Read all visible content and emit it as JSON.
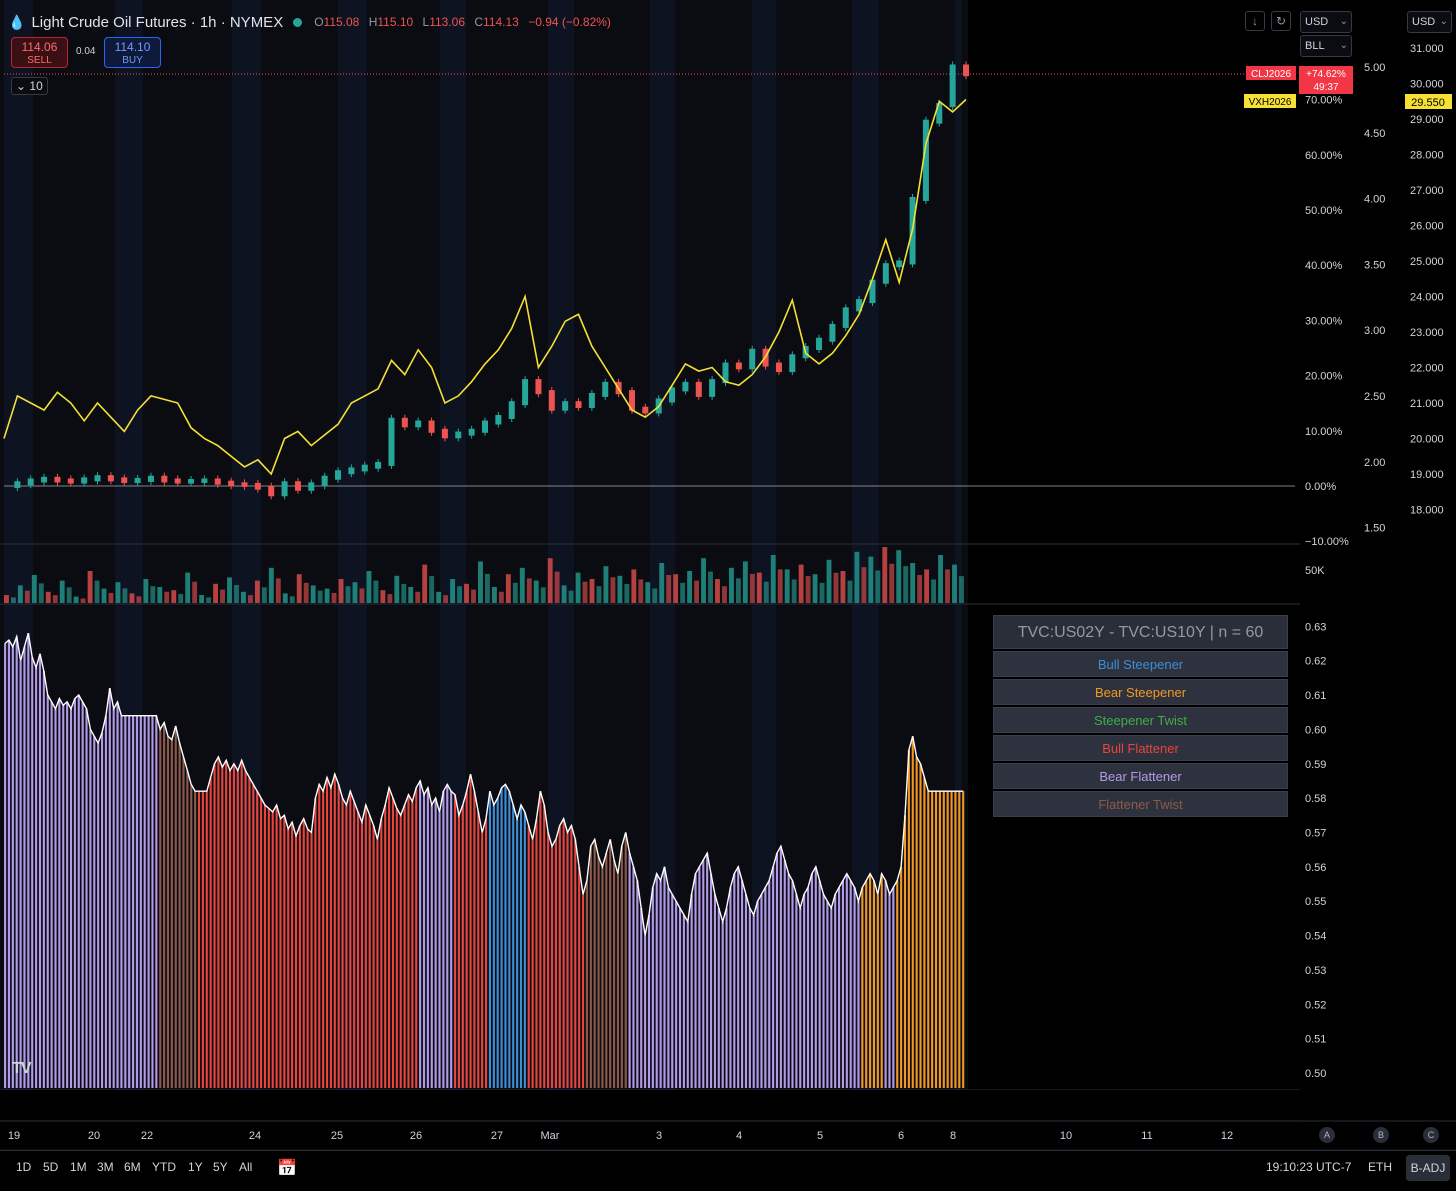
{
  "header": {
    "title": "Light Crude Oil Futures · 1h · NYMEX",
    "ohlc": {
      "o_label": "O",
      "o": "115.08",
      "h_label": "H",
      "h": "115.10",
      "l_label": "L",
      "l": "113.06",
      "c_label": "C",
      "c": "114.13",
      "change": "−0.94 (−0.82%)"
    },
    "sell_price": "114.06",
    "sell_label": "SELL",
    "buy_price": "114.10",
    "buy_label": "BUY",
    "spread": "0.04",
    "interval_value": "10"
  },
  "top_right": {
    "currency_1": "USD",
    "unit_1": "BLL",
    "currency_2": "USD",
    "icon_1": "arrow-down-icon",
    "icon_2": "restore-icon"
  },
  "axes": {
    "pct_ticks": [
      "70.00%",
      "60.00%",
      "50.00%",
      "40.00%",
      "30.00%",
      "20.00%",
      "10.00%",
      "0.00%",
      "−10.00%"
    ],
    "mid_ticks": [
      "5.00",
      "4.50",
      "4.00",
      "3.50",
      "3.00",
      "2.50",
      "2.00",
      "1.50"
    ],
    "right_ticks": [
      "31.000",
      "30.000",
      "29.000",
      "28.000",
      "27.000",
      "26.000",
      "25.000",
      "24.000",
      "23.000",
      "22.000",
      "21.000",
      "20.000",
      "19.000",
      "18.000"
    ],
    "volume_tick": "50K",
    "indicator_ticks": [
      "0.63",
      "0.62",
      "0.61",
      "0.60",
      "0.59",
      "0.58",
      "0.57",
      "0.56",
      "0.55",
      "0.54",
      "0.53",
      "0.52",
      "0.51",
      "0.50"
    ],
    "x_ticks": [
      "19",
      "20",
      "22",
      "24",
      "25",
      "26",
      "27",
      "Mar",
      "3",
      "4",
      "5",
      "6",
      "8",
      "10",
      "11",
      "12"
    ]
  },
  "labels": {
    "cl_symbol": "CLJ2026",
    "cl_change": "+74.62%",
    "cl_countdown": "49:37",
    "vx_symbol": "VXH2026",
    "vx_price": "29.550"
  },
  "chart_data": [
    {
      "type": "line",
      "panel": "price",
      "series": [
        {
          "name": "CLJ2026",
          "color": "#26a69a",
          "values": [
            0.0,
            0.5,
            1.0,
            1.3,
            1.0,
            0.8,
            1.2,
            1.6,
            1.2,
            0.9,
            1.1,
            1.5,
            1.0,
            0.8,
            0.9,
            1.0,
            0.6,
            0.3,
            0.2,
            -0.3,
            -1.5,
            0.5,
            -0.5,
            0.3,
            1.5,
            2.5,
            3.0,
            3.5,
            4.0,
            12.0,
            11.0,
            11.5,
            10.0,
            9.0,
            9.5,
            10.0,
            11.5,
            12.5,
            15.0,
            19.0,
            17.0,
            14.0,
            15.0,
            14.5,
            16.5,
            18.5,
            17.0,
            14.0,
            13.5,
            15.5,
            17.5,
            18.5,
            16.5,
            19.0,
            22.0,
            21.5,
            24.5,
            22.0,
            21.0,
            23.5,
            25.0,
            26.5,
            29.0,
            32.0,
            33.5,
            37.0,
            40.0,
            40.5,
            52.0,
            66.0,
            69.0,
            76.0,
            74.6
          ]
        },
        {
          "name": "VXH2026",
          "color": "#f5e033",
          "values": [
            20.0,
            21.2,
            21.0,
            20.8,
            21.3,
            21.0,
            20.5,
            21.0,
            20.6,
            20.2,
            20.8,
            21.2,
            21.1,
            21.0,
            20.3,
            20.0,
            19.8,
            19.5,
            19.2,
            19.4,
            19.0,
            20.0,
            20.2,
            19.8,
            20.1,
            20.4,
            21.0,
            21.2,
            21.4,
            22.2,
            21.8,
            22.5,
            22.0,
            21.0,
            21.2,
            21.6,
            22.1,
            22.5,
            23.1,
            24.0,
            22.0,
            22.6,
            23.3,
            23.5,
            22.6,
            22.0,
            21.4,
            20.8,
            20.6,
            20.9,
            21.5,
            22.1,
            21.9,
            22.0,
            21.6,
            21.5,
            21.8,
            22.3,
            23.0,
            23.9,
            22.4,
            22.1,
            22.4,
            22.9,
            23.5,
            24.5,
            25.6,
            24.4,
            25.9,
            28.3,
            29.5,
            29.2,
            29.55
          ]
        }
      ],
      "ylim_pct": [
        -10,
        75
      ],
      "ylim_right": [
        18,
        31
      ]
    },
    {
      "type": "bar",
      "panel": "indicator",
      "title": "TVC:US02Y - TVC:US10Y | n = 60",
      "ylim": [
        0.495,
        0.635
      ],
      "legend": [
        {
          "name": "Bull Steepener",
          "color": "#3d8ed6"
        },
        {
          "name": "Bear Steepener",
          "color": "#f29722"
        },
        {
          "name": "Steepener Twist",
          "color": "#3fae49"
        },
        {
          "name": "Bull Flattener",
          "color": "#e8453c"
        },
        {
          "name": "Bear Flattener",
          "color": "#b49ae6"
        },
        {
          "name": "Flattener Twist",
          "color": "#8d5a4a"
        }
      ],
      "segments": [
        {
          "regime": "Bear Flattener",
          "values": [
            0.625,
            0.626,
            0.624,
            0.627,
            0.62,
            0.624,
            0.628,
            0.621,
            0.618,
            0.622,
            0.617,
            0.61,
            0.608,
            0.606,
            0.609,
            0.607,
            0.608,
            0.606,
            0.609,
            0.61,
            0.608,
            0.606,
            0.6,
            0.598,
            0.596,
            0.599,
            0.604
          ]
        },
        {
          "regime": "Bear Flattener",
          "values": [
            0.612,
            0.606,
            0.608,
            0.604,
            0.604,
            0.604,
            0.604,
            0.604,
            0.604,
            0.604,
            0.604,
            0.604,
            0.604
          ]
        },
        {
          "regime": "Flattener Twist",
          "values": [
            0.6,
            0.602,
            0.598,
            0.597,
            0.601,
            0.596,
            0.592,
            0.588,
            0.584,
            0.582
          ]
        },
        {
          "regime": "Bull Flattener",
          "values": [
            0.582,
            0.582,
            0.582,
            0.586,
            0.59,
            0.592,
            0.589,
            0.591,
            0.588,
            0.59,
            0.588,
            0.591,
            0.588,
            0.586,
            0.584,
            0.582,
            0.58,
            0.578,
            0.577,
            0.576,
            0.578,
            0.574,
            0.575,
            0.571,
            0.573,
            0.569,
            0.572,
            0.574,
            0.571,
            0.57,
            0.58,
            0.584,
            0.582,
            0.586,
            0.583,
            0.587,
            0.584,
            0.58,
            0.578,
            0.582,
            0.579,
            0.576,
            0.573,
            0.578,
            0.575,
            0.572,
            0.568,
            0.574,
            0.578,
            0.583,
            0.58,
            0.577,
            0.575,
            0.578,
            0.581,
            0.579,
            0.583
          ]
        },
        {
          "regime": "Bear Flattener",
          "values": [
            0.585,
            0.581,
            0.583,
            0.578,
            0.58,
            0.576,
            0.582,
            0.584,
            0.582
          ]
        },
        {
          "regime": "Bull Flattener",
          "values": [
            0.581,
            0.575,
            0.578,
            0.582,
            0.587,
            0.582,
            0.576,
            0.57,
            0.574
          ]
        },
        {
          "regime": "Bull Steepener",
          "values": [
            0.582,
            0.578,
            0.58,
            0.583,
            0.584,
            0.582,
            0.578,
            0.574,
            0.578,
            0.576
          ]
        },
        {
          "regime": "Bull Flattener",
          "values": [
            0.572,
            0.568,
            0.574,
            0.582,
            0.578,
            0.57,
            0.566,
            0.568,
            0.572,
            0.574,
            0.57,
            0.572,
            0.568,
            0.56,
            0.552
          ]
        },
        {
          "regime": "Flattener Twist",
          "values": [
            0.556,
            0.566,
            0.568,
            0.563,
            0.56,
            0.564,
            0.568,
            0.562,
            0.558,
            0.566,
            0.57
          ]
        },
        {
          "regime": "Bear Flattener",
          "values": [
            0.564,
            0.56,
            0.556,
            0.548,
            0.54,
            0.546,
            0.554,
            0.558,
            0.556,
            0.56,
            0.554,
            0.552,
            0.55,
            0.548,
            0.546,
            0.544,
            0.552,
            0.558,
            0.56,
            0.562,
            0.564,
            0.558,
            0.552,
            0.548,
            0.544,
            0.548,
            0.554,
            0.558,
            0.56,
            0.556,
            0.552,
            0.548,
            0.546,
            0.55,
            0.552,
            0.554,
            0.556,
            0.56,
            0.564,
            0.566,
            0.562,
            0.558,
            0.556,
            0.552,
            0.548,
            0.552,
            0.554,
            0.558,
            0.56,
            0.556,
            0.552,
            0.55,
            0.548,
            0.552,
            0.554,
            0.556,
            0.558,
            0.556,
            0.554,
            0.55
          ]
        },
        {
          "regime": "Bear Steepener",
          "values": [
            0.554,
            0.556,
            0.558,
            0.556,
            0.552,
            0.558
          ]
        },
        {
          "regime": "Bear Flattener",
          "values": [
            0.556,
            0.552,
            0.554
          ]
        },
        {
          "regime": "Bear Steepener",
          "values": [
            0.556,
            0.56,
            0.575,
            0.594,
            0.598,
            0.592,
            0.59,
            0.586,
            0.582,
            0.582,
            0.582,
            0.582,
            0.582,
            0.582,
            0.582,
            0.582,
            0.582,
            0.582
          ]
        }
      ]
    },
    {
      "type": "bar",
      "panel": "volume",
      "values": [
        10,
        22,
        35,
        14,
        28,
        8,
        40,
        18,
        26,
        12,
        30,
        20,
        16,
        38,
        10,
        24,
        32,
        14,
        28,
        44,
        12,
        36,
        22,
        18,
        30,
        26,
        40,
        16,
        34,
        20,
        48,
        14,
        30,
        24,
        52,
        20,
        36,
        44,
        28,
        56,
        22,
        38,
        30,
        46,
        34,
        42,
        26,
        50,
        36,
        40,
        56,
        30,
        44,
        52,
        38,
        60,
        42,
        48,
        36,
        54,
        40,
        64,
        58,
        70,
        66,
        50,
        42,
        60,
        48
      ]
    }
  ]
}
